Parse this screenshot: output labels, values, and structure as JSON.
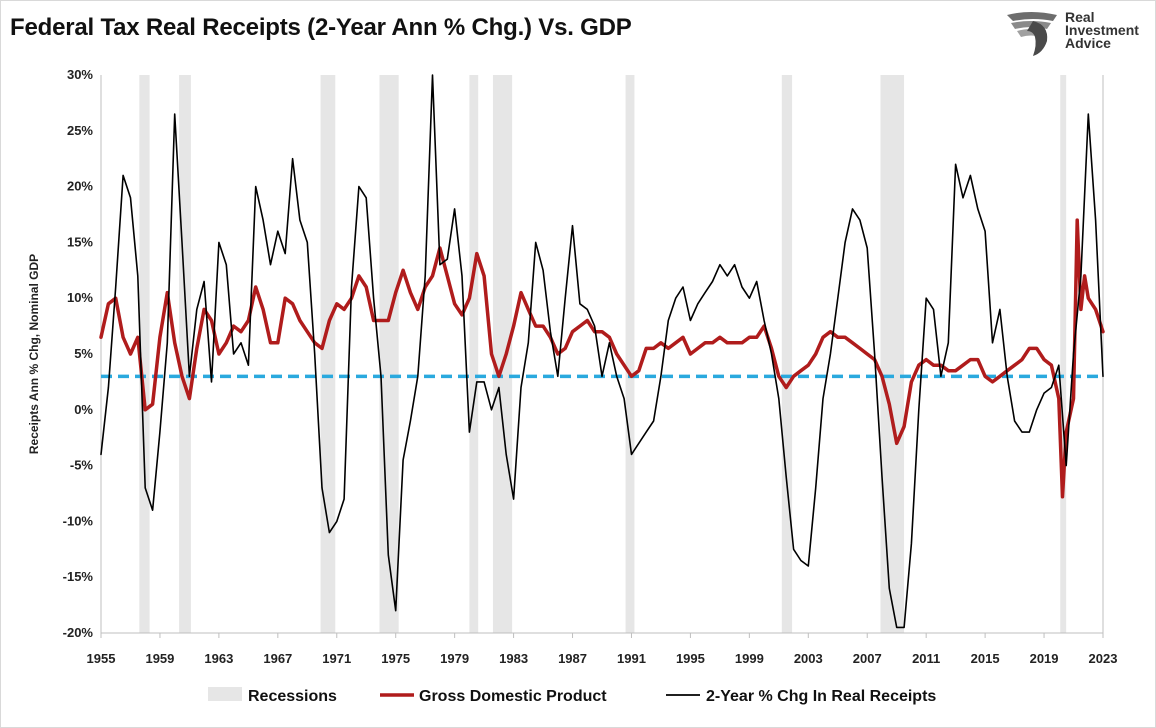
{
  "chart_data": {
    "type": "line",
    "title": "Federal Tax Real Receipts (2-Year Ann % Chg.) Vs. GDP",
    "ylabel": "Receipts Ann % Chg, Nominal GDP",
    "xlabel": "",
    "xlim": [
      1955,
      2023
    ],
    "ylim": [
      -20,
      30
    ],
    "y_ticks": [
      30,
      25,
      20,
      15,
      10,
      5,
      0,
      -5,
      -10,
      -15,
      -20
    ],
    "y_tick_labels": [
      "30%",
      "25%",
      "20%",
      "15%",
      "10%",
      "5%",
      "0%",
      "-5%",
      "-10%",
      "-15%",
      "-20%"
    ],
    "x_ticks": [
      1955,
      1959,
      1963,
      1967,
      1971,
      1975,
      1979,
      1983,
      1987,
      1991,
      1995,
      1999,
      2003,
      2007,
      2011,
      2015,
      2019,
      2023
    ],
    "x_tick_labels": [
      "1955",
      "1959",
      "1963",
      "1967",
      "1971",
      "1975",
      "1979",
      "1983",
      "1987",
      "1991",
      "1995",
      "1999",
      "2003",
      "2007",
      "2011",
      "2015",
      "2019",
      "2023"
    ],
    "legend_position": "bottom",
    "grid": false,
    "recessions": [
      [
        1957.6,
        1958.3
      ],
      [
        1960.3,
        1961.1
      ],
      [
        1969.9,
        1970.9
      ],
      [
        1973.9,
        1975.2
      ],
      [
        1980.0,
        1980.6
      ],
      [
        1981.6,
        1982.9
      ],
      [
        1990.6,
        1991.2
      ],
      [
        2001.2,
        2001.9
      ],
      [
        2007.9,
        2009.5
      ],
      [
        2020.1,
        2020.5
      ]
    ],
    "reference_line": {
      "y": 3,
      "color": "#2aa9de",
      "style": "dashed"
    },
    "series": [
      {
        "name": "Gross Domestic Product",
        "color": "#b01c1c",
        "x": [
          1955.0,
          1955.5,
          1956.0,
          1956.5,
          1957.0,
          1957.5,
          1958.0,
          1958.5,
          1959.0,
          1959.5,
          1960.0,
          1960.5,
          1961.0,
          1961.5,
          1962.0,
          1962.5,
          1963.0,
          1963.5,
          1964.0,
          1964.5,
          1965.0,
          1965.5,
          1966.0,
          1966.5,
          1967.0,
          1967.5,
          1968.0,
          1968.5,
          1969.0,
          1969.5,
          1970.0,
          1970.5,
          1971.0,
          1971.5,
          1972.0,
          1972.5,
          1973.0,
          1973.5,
          1974.0,
          1974.5,
          1975.0,
          1975.5,
          1976.0,
          1976.5,
          1977.0,
          1977.5,
          1978.0,
          1978.5,
          1979.0,
          1979.5,
          1980.0,
          1980.5,
          1981.0,
          1981.5,
          1982.0,
          1982.5,
          1983.0,
          1983.5,
          1984.0,
          1984.5,
          1985.0,
          1985.5,
          1986.0,
          1986.5,
          1987.0,
          1987.5,
          1988.0,
          1988.5,
          1989.0,
          1989.5,
          1990.0,
          1990.5,
          1991.0,
          1991.5,
          1992.0,
          1992.5,
          1993.0,
          1993.5,
          1994.0,
          1994.5,
          1995.0,
          1995.5,
          1996.0,
          1996.5,
          1997.0,
          1997.5,
          1998.0,
          1998.5,
          1999.0,
          1999.5,
          2000.0,
          2000.5,
          2001.0,
          2001.5,
          2002.0,
          2002.5,
          2003.0,
          2003.5,
          2004.0,
          2004.5,
          2005.0,
          2005.5,
          2006.0,
          2006.5,
          2007.0,
          2007.5,
          2008.0,
          2008.5,
          2009.0,
          2009.5,
          2010.0,
          2010.5,
          2011.0,
          2011.5,
          2012.0,
          2012.5,
          2013.0,
          2013.5,
          2014.0,
          2014.5,
          2015.0,
          2015.5,
          2016.0,
          2016.5,
          2017.0,
          2017.5,
          2018.0,
          2018.5,
          2019.0,
          2019.5,
          2020.0,
          2020.25,
          2020.5,
          2021.0,
          2021.25,
          2021.5,
          2021.75,
          2022.0,
          2022.5,
          2023.0
        ],
        "y": [
          6.5,
          9.5,
          10.0,
          6.5,
          5.0,
          6.5,
          0.0,
          0.5,
          6.5,
          10.5,
          6.0,
          3.0,
          1.0,
          5.5,
          9.0,
          8.0,
          5.0,
          6.0,
          7.5,
          7.0,
          8.0,
          11.0,
          9.0,
          6.0,
          6.0,
          10.0,
          9.5,
          8.0,
          7.0,
          6.0,
          5.5,
          8.0,
          9.5,
          9.0,
          10.0,
          12.0,
          11.0,
          8.0,
          8.0,
          8.0,
          10.5,
          12.5,
          10.5,
          9.0,
          11.0,
          12.0,
          14.5,
          12.0,
          9.5,
          8.5,
          10.0,
          14.0,
          12.0,
          5.0,
          3.0,
          5.0,
          7.5,
          10.5,
          9.0,
          7.5,
          7.5,
          6.5,
          5.0,
          5.5,
          7.0,
          7.5,
          8.0,
          7.0,
          7.0,
          6.5,
          5.0,
          4.0,
          3.0,
          3.5,
          5.5,
          5.5,
          6.0,
          5.5,
          6.0,
          6.5,
          5.0,
          5.5,
          6.0,
          6.0,
          6.5,
          6.0,
          6.0,
          6.0,
          6.5,
          6.5,
          7.5,
          5.5,
          3.0,
          2.0,
          3.0,
          3.5,
          4.0,
          5.0,
          6.5,
          7.0,
          6.5,
          6.5,
          6.0,
          5.5,
          5.0,
          4.5,
          3.0,
          0.5,
          -3.0,
          -1.5,
          2.5,
          4.0,
          4.5,
          4.0,
          4.0,
          3.5,
          3.5,
          4.0,
          4.5,
          4.5,
          3.0,
          2.5,
          3.0,
          3.5,
          4.0,
          4.5,
          5.5,
          5.5,
          4.5,
          4.0,
          1.0,
          -7.8,
          -2.0,
          1.0,
          17.0,
          9.0,
          12.0,
          10.0,
          9.0,
          7.0
        ]
      },
      {
        "name": "2-Year % Chg In Real Receipts",
        "color": "#000000",
        "x": [
          1955.0,
          1955.5,
          1956.0,
          1956.5,
          1957.0,
          1957.5,
          1958.0,
          1958.5,
          1959.0,
          1959.5,
          1960.0,
          1960.5,
          1961.0,
          1961.5,
          1962.0,
          1962.5,
          1963.0,
          1963.5,
          1964.0,
          1964.5,
          1965.0,
          1965.5,
          1966.0,
          1966.5,
          1967.0,
          1967.5,
          1968.0,
          1968.5,
          1969.0,
          1969.5,
          1970.0,
          1970.5,
          1971.0,
          1971.5,
          1972.0,
          1972.5,
          1973.0,
          1973.5,
          1974.0,
          1974.5,
          1975.0,
          1975.5,
          1976.0,
          1976.5,
          1977.0,
          1977.5,
          1978.0,
          1978.5,
          1979.0,
          1979.5,
          1980.0,
          1980.5,
          1981.0,
          1981.5,
          1982.0,
          1982.5,
          1983.0,
          1983.5,
          1984.0,
          1984.5,
          1985.0,
          1985.5,
          1986.0,
          1986.5,
          1987.0,
          1987.5,
          1988.0,
          1988.5,
          1989.0,
          1989.5,
          1990.0,
          1990.5,
          1991.0,
          1991.5,
          1992.0,
          1992.5,
          1993.0,
          1993.5,
          1994.0,
          1994.5,
          1995.0,
          1995.5,
          1996.0,
          1996.5,
          1997.0,
          1997.5,
          1998.0,
          1998.5,
          1999.0,
          1999.5,
          2000.0,
          2000.5,
          2001.0,
          2001.5,
          2002.0,
          2002.5,
          2003.0,
          2003.5,
          2004.0,
          2004.5,
          2005.0,
          2005.5,
          2006.0,
          2006.5,
          2007.0,
          2007.5,
          2008.0,
          2008.5,
          2009.0,
          2009.5,
          2010.0,
          2010.5,
          2011.0,
          2011.5,
          2012.0,
          2012.5,
          2013.0,
          2013.5,
          2014.0,
          2014.5,
          2015.0,
          2015.5,
          2016.0,
          2016.5,
          2017.0,
          2017.5,
          2018.0,
          2018.5,
          2019.0,
          2019.5,
          2020.0,
          2020.5,
          2021.0,
          2021.5,
          2022.0,
          2022.5,
          2023.0
        ],
        "y": [
          -4.0,
          2.0,
          11.0,
          21.0,
          19.0,
          12.0,
          -7.0,
          -9.0,
          -2.0,
          6.0,
          26.5,
          15.0,
          3.0,
          9.0,
          11.5,
          2.5,
          15.0,
          13.0,
          5.0,
          6.0,
          4.0,
          20.0,
          17.0,
          13.0,
          16.0,
          14.0,
          22.5,
          17.0,
          15.0,
          5.0,
          -7.0,
          -11.0,
          -10.0,
          -8.0,
          11.0,
          20.0,
          19.0,
          10.0,
          3.0,
          -13.0,
          -18.0,
          -4.5,
          -1.0,
          3.0,
          12.0,
          30.0,
          13.0,
          13.5,
          18.0,
          12.0,
          -2.0,
          2.5,
          2.5,
          0.0,
          2.0,
          -4.0,
          -8.0,
          2.0,
          6.0,
          15.0,
          12.5,
          7.0,
          3.0,
          10.0,
          16.5,
          9.5,
          9.0,
          7.5,
          3.0,
          6.0,
          3.0,
          1.0,
          -4.0,
          -3.0,
          -2.0,
          -1.0,
          3.0,
          8.0,
          10.0,
          11.0,
          8.0,
          9.5,
          10.5,
          11.5,
          13.0,
          12.0,
          13.0,
          11.0,
          10.0,
          11.5,
          8.0,
          5.0,
          1.0,
          -6.0,
          -12.5,
          -13.5,
          -14.0,
          -7.0,
          1.0,
          5.0,
          10.0,
          15.0,
          18.0,
          17.0,
          14.5,
          5.0,
          -6.0,
          -16.0,
          -19.5,
          -19.5,
          -12.0,
          0.0,
          10.0,
          9.0,
          3.0,
          6.0,
          22.0,
          19.0,
          21.0,
          18.0,
          16.0,
          6.0,
          9.0,
          3.0,
          -1.0,
          -2.0,
          -2.0,
          0.0,
          1.5,
          2.0,
          4.0,
          -5.0,
          5.0,
          12.0,
          26.5,
          17.0,
          3.0
        ]
      }
    ],
    "legend": [
      {
        "name": "Recessions",
        "kind": "box",
        "color": "#e6e6e6"
      },
      {
        "name": "Gross Domestic Product",
        "kind": "line",
        "color": "#b01c1c"
      },
      {
        "name": "2-Year % Chg In Real Receipts",
        "kind": "line",
        "color": "#000000"
      }
    ]
  },
  "logo": {
    "line1": "Real",
    "line2": "Investment",
    "line3": "Advice"
  }
}
